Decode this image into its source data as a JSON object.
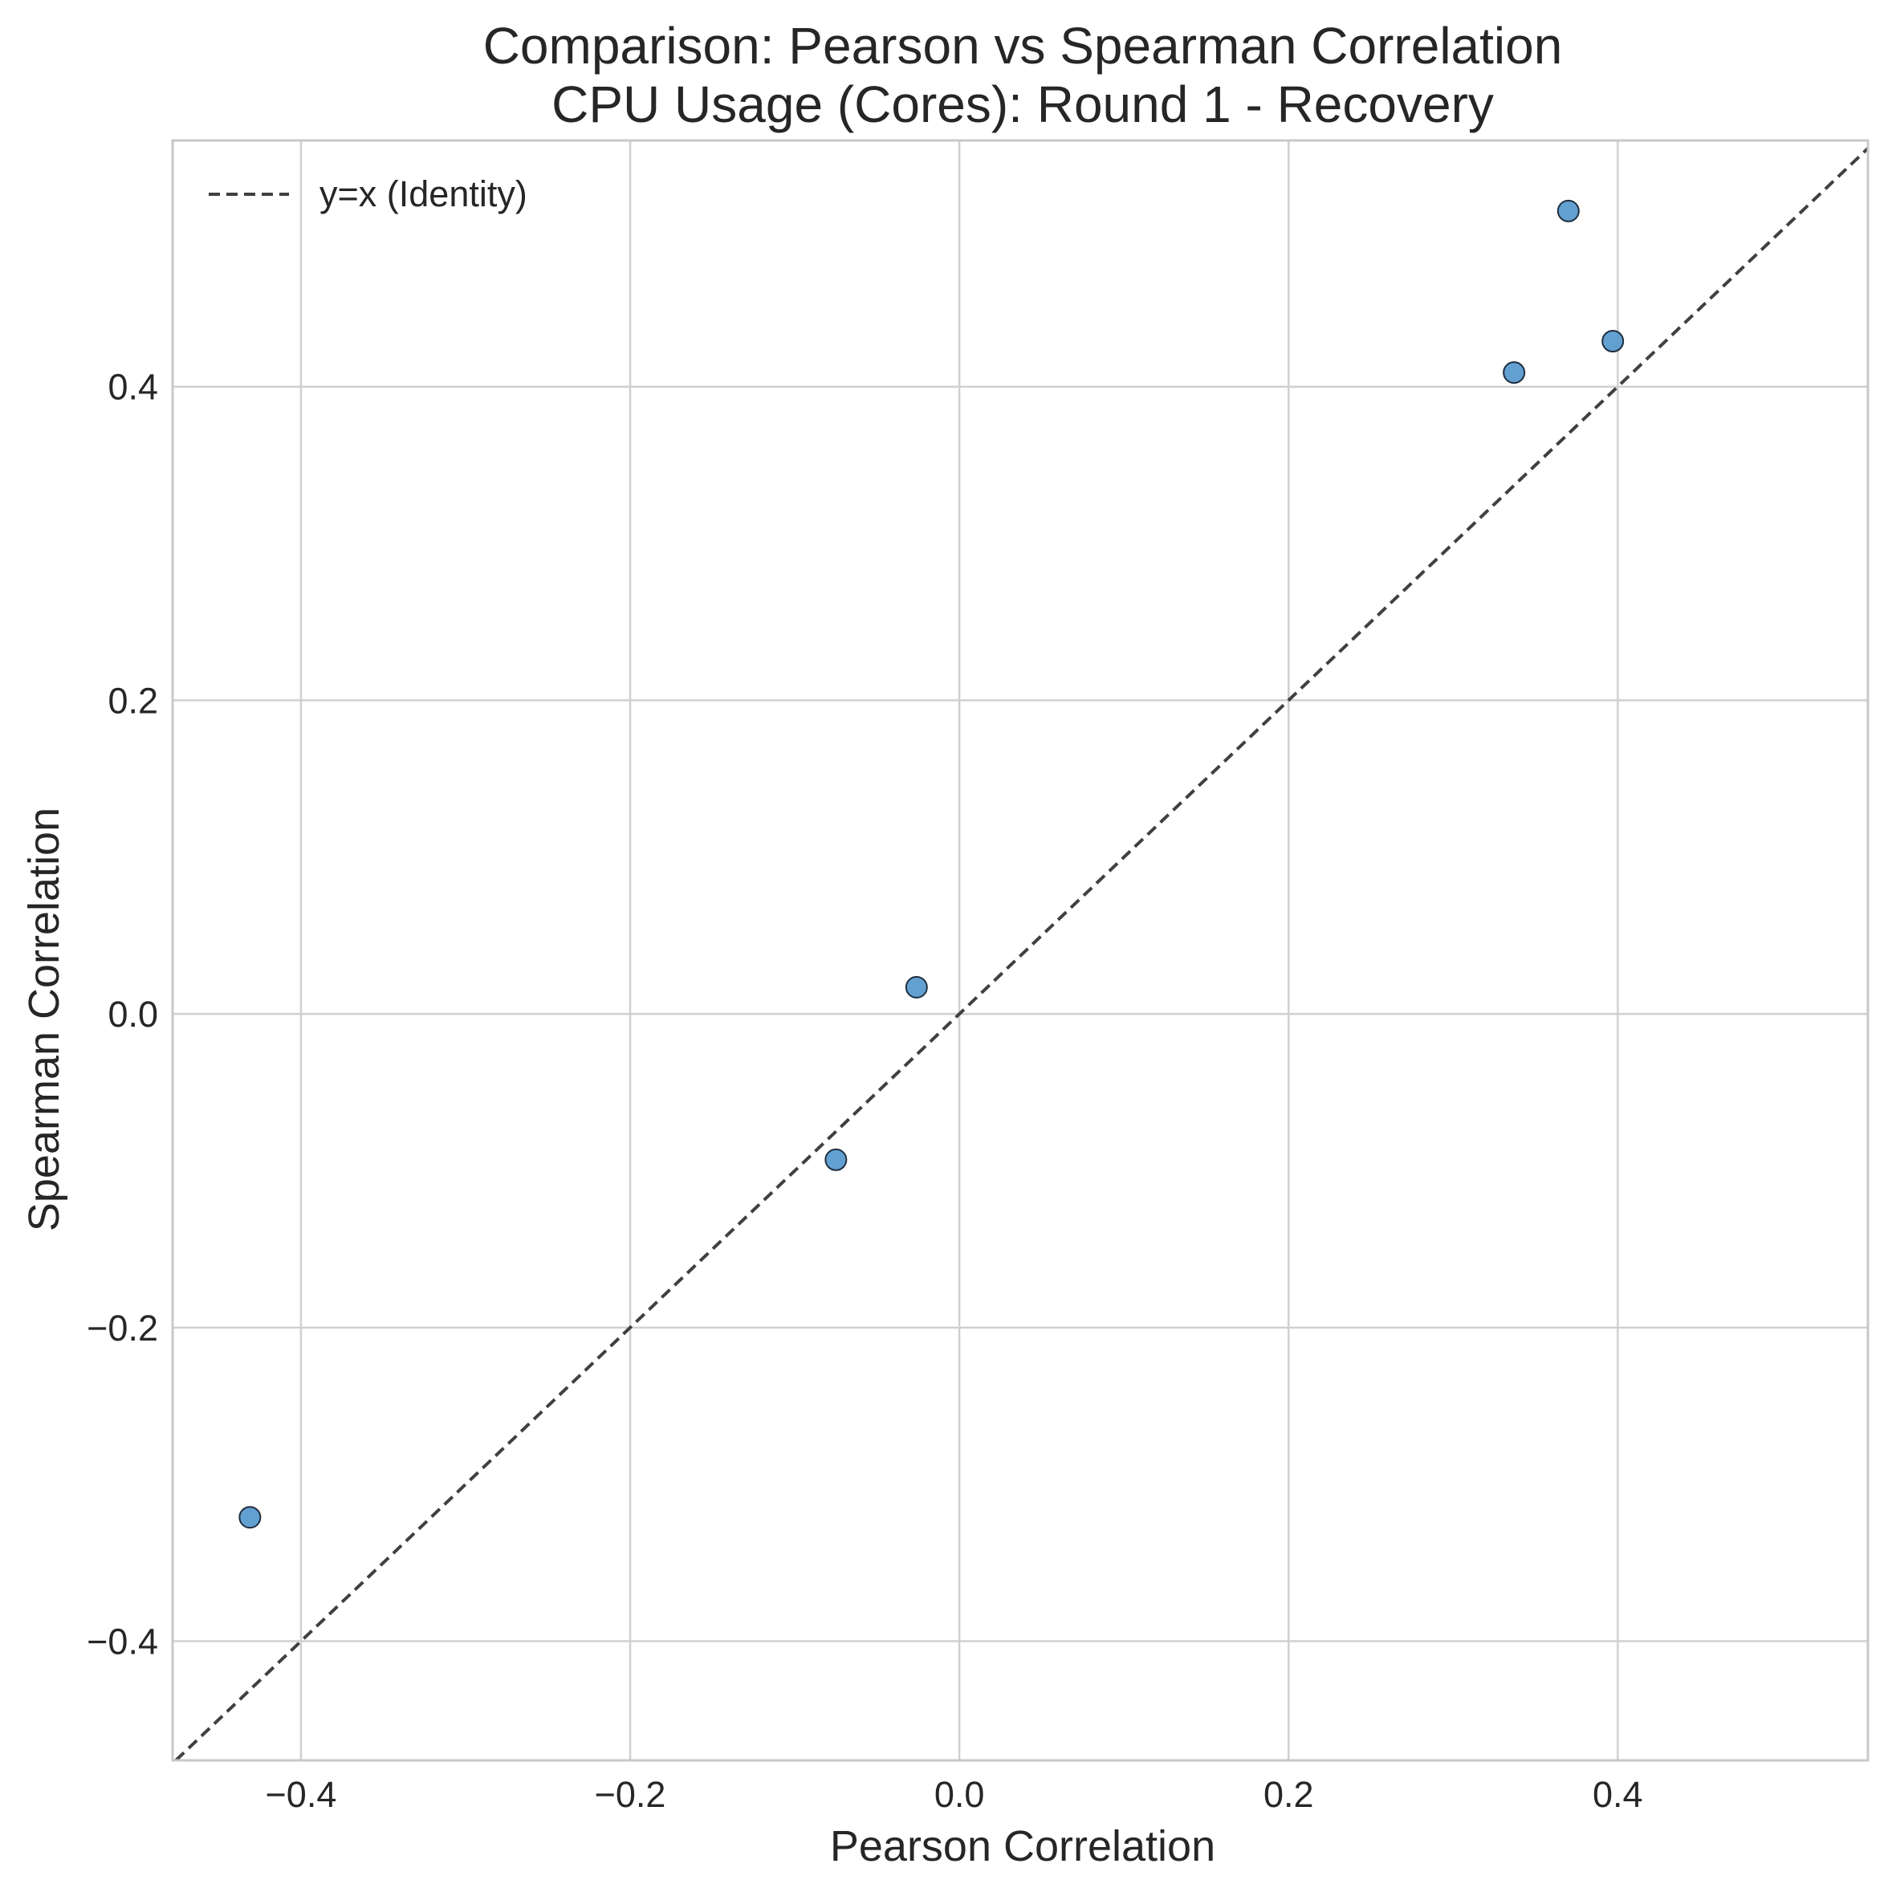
{
  "chart_data": {
    "type": "scatter",
    "title": "Comparison: Pearson vs Spearman Correlation",
    "subtitle": "CPU Usage (Cores): Round 1 - Recovery",
    "xlabel": "Pearson Correlation",
    "ylabel": "Spearman Correlation",
    "xlim": [
      -0.478,
      0.552
    ],
    "ylim": [
      -0.476,
      0.557
    ],
    "x_ticks": [
      -0.4,
      -0.2,
      0.0,
      0.2,
      0.4
    ],
    "x_tick_labels": [
      "−0.4",
      "−0.2",
      "0.0",
      "0.2",
      "0.4"
    ],
    "y_ticks": [
      -0.4,
      -0.2,
      0.0,
      0.2,
      0.4
    ],
    "y_tick_labels": [
      "−0.4",
      "−0.2",
      "0.0",
      "0.2",
      "0.4"
    ],
    "grid": true,
    "legend_position": "top-left",
    "points": [
      {
        "x": -0.431,
        "y": -0.321
      },
      {
        "x": -0.075,
        "y": -0.093
      },
      {
        "x": -0.026,
        "y": 0.017
      },
      {
        "x": 0.337,
        "y": 0.409
      },
      {
        "x": 0.37,
        "y": 0.512
      },
      {
        "x": 0.397,
        "y": 0.429
      }
    ],
    "reference_line": {
      "label": "y=x (Identity)",
      "style": "dashed"
    },
    "colors": {
      "point_fill": "#5b9bd0",
      "point_edge": "#1f2f3f",
      "line": "#404040",
      "grid": "#d0d0d0",
      "frame": "#c8c8c8"
    }
  }
}
